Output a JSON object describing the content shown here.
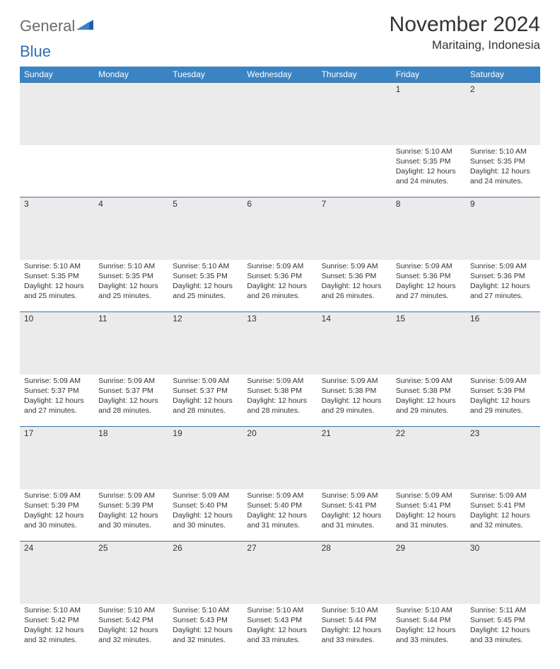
{
  "brand": {
    "general": "General",
    "blue": "Blue"
  },
  "title": "November 2024",
  "location": "Maritaing, Indonesia",
  "colors": {
    "header_bg": "#3b84c4",
    "header_text": "#ffffff",
    "daynum_bg": "#ebebeb",
    "rule": "#3b6fa3",
    "text": "#333333",
    "logo_gray": "#6b6b6b",
    "logo_blue": "#2a71b8"
  },
  "day_headers": [
    "Sunday",
    "Monday",
    "Tuesday",
    "Wednesday",
    "Thursday",
    "Friday",
    "Saturday"
  ],
  "weeks": [
    [
      null,
      null,
      null,
      null,
      null,
      {
        "n": "1",
        "sr": "5:10 AM",
        "ss": "5:35 PM",
        "dl": "12 hours and 24 minutes."
      },
      {
        "n": "2",
        "sr": "5:10 AM",
        "ss": "5:35 PM",
        "dl": "12 hours and 24 minutes."
      }
    ],
    [
      {
        "n": "3",
        "sr": "5:10 AM",
        "ss": "5:35 PM",
        "dl": "12 hours and 25 minutes."
      },
      {
        "n": "4",
        "sr": "5:10 AM",
        "ss": "5:35 PM",
        "dl": "12 hours and 25 minutes."
      },
      {
        "n": "5",
        "sr": "5:10 AM",
        "ss": "5:35 PM",
        "dl": "12 hours and 25 minutes."
      },
      {
        "n": "6",
        "sr": "5:09 AM",
        "ss": "5:36 PM",
        "dl": "12 hours and 26 minutes."
      },
      {
        "n": "7",
        "sr": "5:09 AM",
        "ss": "5:36 PM",
        "dl": "12 hours and 26 minutes."
      },
      {
        "n": "8",
        "sr": "5:09 AM",
        "ss": "5:36 PM",
        "dl": "12 hours and 27 minutes."
      },
      {
        "n": "9",
        "sr": "5:09 AM",
        "ss": "5:36 PM",
        "dl": "12 hours and 27 minutes."
      }
    ],
    [
      {
        "n": "10",
        "sr": "5:09 AM",
        "ss": "5:37 PM",
        "dl": "12 hours and 27 minutes."
      },
      {
        "n": "11",
        "sr": "5:09 AM",
        "ss": "5:37 PM",
        "dl": "12 hours and 28 minutes."
      },
      {
        "n": "12",
        "sr": "5:09 AM",
        "ss": "5:37 PM",
        "dl": "12 hours and 28 minutes."
      },
      {
        "n": "13",
        "sr": "5:09 AM",
        "ss": "5:38 PM",
        "dl": "12 hours and 28 minutes."
      },
      {
        "n": "14",
        "sr": "5:09 AM",
        "ss": "5:38 PM",
        "dl": "12 hours and 29 minutes."
      },
      {
        "n": "15",
        "sr": "5:09 AM",
        "ss": "5:38 PM",
        "dl": "12 hours and 29 minutes."
      },
      {
        "n": "16",
        "sr": "5:09 AM",
        "ss": "5:39 PM",
        "dl": "12 hours and 29 minutes."
      }
    ],
    [
      {
        "n": "17",
        "sr": "5:09 AM",
        "ss": "5:39 PM",
        "dl": "12 hours and 30 minutes."
      },
      {
        "n": "18",
        "sr": "5:09 AM",
        "ss": "5:39 PM",
        "dl": "12 hours and 30 minutes."
      },
      {
        "n": "19",
        "sr": "5:09 AM",
        "ss": "5:40 PM",
        "dl": "12 hours and 30 minutes."
      },
      {
        "n": "20",
        "sr": "5:09 AM",
        "ss": "5:40 PM",
        "dl": "12 hours and 31 minutes."
      },
      {
        "n": "21",
        "sr": "5:09 AM",
        "ss": "5:41 PM",
        "dl": "12 hours and 31 minutes."
      },
      {
        "n": "22",
        "sr": "5:09 AM",
        "ss": "5:41 PM",
        "dl": "12 hours and 31 minutes."
      },
      {
        "n": "23",
        "sr": "5:09 AM",
        "ss": "5:41 PM",
        "dl": "12 hours and 32 minutes."
      }
    ],
    [
      {
        "n": "24",
        "sr": "5:10 AM",
        "ss": "5:42 PM",
        "dl": "12 hours and 32 minutes."
      },
      {
        "n": "25",
        "sr": "5:10 AM",
        "ss": "5:42 PM",
        "dl": "12 hours and 32 minutes."
      },
      {
        "n": "26",
        "sr": "5:10 AM",
        "ss": "5:43 PM",
        "dl": "12 hours and 32 minutes."
      },
      {
        "n": "27",
        "sr": "5:10 AM",
        "ss": "5:43 PM",
        "dl": "12 hours and 33 minutes."
      },
      {
        "n": "28",
        "sr": "5:10 AM",
        "ss": "5:44 PM",
        "dl": "12 hours and 33 minutes."
      },
      {
        "n": "29",
        "sr": "5:10 AM",
        "ss": "5:44 PM",
        "dl": "12 hours and 33 minutes."
      },
      {
        "n": "30",
        "sr": "5:11 AM",
        "ss": "5:45 PM",
        "dl": "12 hours and 33 minutes."
      }
    ]
  ],
  "labels": {
    "sunrise": "Sunrise: ",
    "sunset": "Sunset: ",
    "daylight": "Daylight: "
  }
}
